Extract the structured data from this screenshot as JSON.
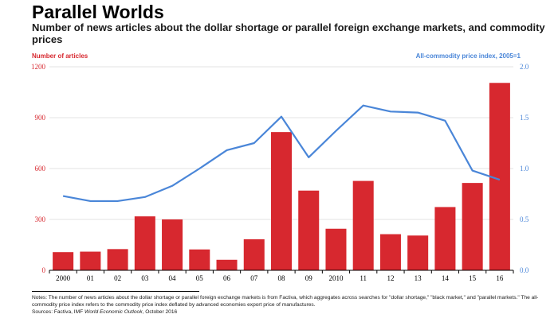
{
  "title": "Parallel Worlds",
  "subtitle": "Number of news articles about the dollar shortage or parallel foreign exchange markets, and commodity prices",
  "notes": {
    "line1": "Notes: The number of news articles about the dollar shortage or parallel foreign exchange markets is from Factiva, which aggregates across searches for \"dollar shortage,\" \"black market,\" and \"parallel markets.\" The all-commodity price index refers to the commodity price index deflated by advanced economies export price of manufactures.",
    "sources_prefix": "Sources: Factiva, IMF ",
    "sources_italic": "World Economic Outlook",
    "sources_suffix": ", October 2016"
  },
  "colors": {
    "bar": "#d7282f",
    "line": "#4a86d8",
    "grid": "#e3e3e3"
  },
  "chart_data": {
    "type": "bar",
    "categories": [
      "2000",
      "01",
      "02",
      "03",
      "04",
      "05",
      "06",
      "07",
      "08",
      "09",
      "2010",
      "11",
      "12",
      "13",
      "14",
      "15",
      "16"
    ],
    "series": [
      {
        "name": "",
        "type": "bar",
        "axis": "left",
        "values": [
          107,
          110,
          125,
          318,
          300,
          123,
          62,
          183,
          815,
          470,
          245,
          527,
          213,
          205,
          373,
          515,
          1105
        ]
      },
      {
        "name": "",
        "type": "line",
        "axis": "right",
        "values": [
          0.73,
          0.68,
          0.68,
          0.72,
          0.83,
          1.0,
          1.18,
          1.25,
          1.51,
          1.11,
          1.37,
          1.62,
          1.56,
          1.55,
          1.47,
          0.98,
          0.89
        ]
      }
    ],
    "ylabel": "Number of articles",
    "ylabel_right": "All-commodity price index, 2005=1",
    "ylim": [
      0,
      1200
    ],
    "ylim_right": [
      0,
      2.0
    ],
    "yticks": [
      "0",
      "300",
      "600",
      "900",
      "1200"
    ],
    "yticks_right": [
      "0.0",
      "0.5",
      "1.0",
      "1.5",
      "2.0"
    ],
    "grid": true
  }
}
